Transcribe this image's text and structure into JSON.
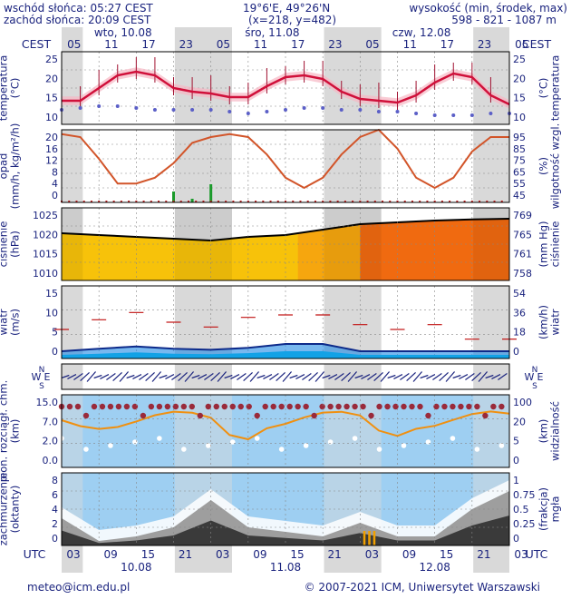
{
  "header": {
    "sunrise": "wschód słońca: 05:27 CEST",
    "sunset": "zachód słońca: 20:09 CEST",
    "coords": "19°6'E, 49°26'N",
    "grid": "(x=218, y=482)",
    "elev_label": "wysokość (min, środek, max)",
    "elev_values": "598 - 821 - 1087 m"
  },
  "top_axis": {
    "tz_left": "CEST",
    "tz_right": "CEST",
    "hours": [
      "05",
      "11",
      "17",
      "23",
      "05",
      "11",
      "17",
      "23",
      "05",
      "11",
      "17",
      "23",
      "05"
    ],
    "days": [
      "wto, 10.08",
      "śro, 11.08",
      "czw, 12.08"
    ]
  },
  "bottom_axis": {
    "tz_left": "UTC",
    "tz_right": "UTC",
    "hours": [
      "03",
      "09",
      "15",
      "21",
      "03",
      "09",
      "15",
      "21",
      "03",
      "09",
      "15",
      "21",
      "03"
    ],
    "days": [
      "10.08",
      "11.08",
      "12.08"
    ]
  },
  "panels": {
    "temperature": {
      "ylabel_left": "temperatura\n(°C)",
      "ylabel_right": "(°C)\ntemperatura",
      "ticks": [
        "25",
        "20",
        "15",
        "10"
      ]
    },
    "precip": {
      "ylabel_left": "opad\n(mm/h, kg/m²/h)",
      "ylabel_right": "(%)\nwilgotność wzgl.",
      "ticks_left": [
        "20",
        "16",
        "12",
        "8",
        "4",
        "0"
      ],
      "ticks_right": [
        "95",
        "85",
        "75",
        "65",
        "55",
        "45"
      ]
    },
    "pressure": {
      "ylabel_left": "ciśnienie\n(hPa)",
      "ylabel_right": "(mm Hg)\nciśnienie",
      "ticks_left": [
        "1025",
        "1020",
        "1015",
        "1010"
      ],
      "ticks_right": [
        "769",
        "765",
        "761",
        "758"
      ]
    },
    "wind": {
      "ylabel_left": "wiatr\n(m/s)",
      "ylabel_right": "(km/h)\nwiatr",
      "ticks_left": [
        "15",
        "10",
        "5",
        "0"
      ],
      "ticks_right": [
        "54",
        "36",
        "18",
        "0"
      ]
    },
    "wind_dir": {
      "compass": "W E N S"
    },
    "visibility": {
      "ylabel_left": "pion. rozciągł. chm.\n(km)",
      "ylabel_right": "(km)\nwidzialność",
      "ticks_left": [
        "15.0",
        "7.0",
        "2.0",
        "0.0"
      ],
      "ticks_right": [
        "100",
        "20",
        "5",
        "0"
      ]
    },
    "cloud": {
      "ylabel_left": "zachmurzenie\n(oktanty)",
      "ylabel_right": "(frakcja)\nmgła",
      "ticks_left": [
        "8",
        "6",
        "4",
        "2",
        "0"
      ],
      "ticks_right": [
        "1",
        "0.75",
        "0.5",
        "0.25",
        "0"
      ]
    }
  },
  "footer": {
    "email": "meteo@icm.edu.pl",
    "copyright": "© 2007-2021 ICM, Uniwersytet Warszawski"
  },
  "colors": {
    "text": "#1a237e",
    "night": "#d9d9d9",
    "temp_line": "#d0103a",
    "dew_points": "#5b5fc7",
    "humidity": "#d2552a",
    "rain": "#1a9a2a",
    "pressure_low": "#f7c20a",
    "pressure_high": "#f06a10",
    "wind_avg": "#1565c0",
    "wind_fill": "#00c8e8",
    "gust": "#c01010",
    "sky": "#9ecff2",
    "vis_line": "#f09010",
    "cloud_dark": "#3a3a3a"
  },
  "chart_data": [
    {
      "type": "line",
      "title": "temperatura",
      "x_hours_utc": [
        0,
        3,
        6,
        9,
        12,
        15,
        18,
        21,
        24,
        27,
        30,
        33,
        36,
        39,
        42,
        45,
        48,
        51,
        54,
        57,
        60,
        63,
        66,
        69,
        72
      ],
      "series": [
        {
          "name": "temperatura",
          "values": [
            14.5,
            14.5,
            18,
            21.5,
            22.5,
            21.5,
            18,
            17,
            16.5,
            15.5,
            15.5,
            18.5,
            21,
            21.5,
            20.5,
            17,
            15,
            14.5,
            14,
            16,
            19.5,
            22,
            21,
            16,
            13.5
          ]
        },
        {
          "values": [
            12,
            12.5,
            13,
            13,
            12.5,
            12,
            12,
            12,
            12,
            11.5,
            11,
            11.5,
            12,
            12.5,
            12.5,
            12,
            12,
            11.5,
            11.5,
            11,
            10.5,
            10.5,
            10.5,
            11,
            11
          ]
        }
      ],
      "ylim": [
        8,
        28
      ]
    },
    {
      "type": "line",
      "title": "opad / wilgotność",
      "x_hours_utc": [
        0,
        3,
        6,
        9,
        12,
        15,
        18,
        21,
        24,
        27,
        30,
        33,
        36,
        39,
        42,
        45,
        48,
        51,
        54,
        57,
        60,
        63,
        66,
        69,
        72
      ],
      "series": [
        {
          "name": "wilgotność",
          "values": [
            92,
            90,
            75,
            58,
            58,
            62,
            72,
            86,
            90,
            92,
            90,
            78,
            62,
            55,
            62,
            78,
            90,
            95,
            82,
            62,
            55,
            62,
            80,
            90,
            90
          ]
        },
        {
          "name": "opad",
          "values": [
            0,
            0,
            0,
            0,
            0,
            0,
            3,
            1,
            5,
            0,
            0,
            0,
            0,
            0,
            0,
            0,
            0,
            0,
            0,
            0,
            0,
            0,
            0,
            0,
            0
          ]
        }
      ],
      "ylim_left": [
        0,
        20
      ],
      "ylim_right": [
        45,
        95
      ]
    },
    {
      "type": "area",
      "title": "ciśnienie",
      "x_hours_utc": [
        0,
        6,
        12,
        18,
        24,
        30,
        36,
        42,
        48,
        54,
        60,
        66,
        72
      ],
      "values": [
        1020,
        1019.5,
        1019,
        1018.5,
        1018,
        1019,
        1019.5,
        1021,
        1022.5,
        1023,
        1023.5,
        1023.8,
        1024
      ],
      "ylim": [
        1007,
        1027
      ]
    },
    {
      "type": "line",
      "title": "wiatr",
      "x_hours_utc": [
        0,
        6,
        12,
        18,
        24,
        30,
        36,
        42,
        48,
        54,
        60,
        66,
        72
      ],
      "series": [
        {
          "name": "wiatr",
          "values": [
            1.5,
            2,
            2.5,
            2,
            1.8,
            2.2,
            3,
            3,
            1.5,
            1.5,
            1.5,
            1.5,
            1.5
          ]
        },
        {
          "name": "porywy",
          "values": [
            6,
            8,
            9.5,
            7.5,
            6.5,
            8.5,
            9,
            9,
            7,
            6,
            7,
            4,
            4
          ]
        }
      ],
      "ylim": [
        0,
        15
      ]
    },
    {
      "type": "area",
      "title": "zachmurzenie",
      "x_hours_utc": [
        0,
        6,
        12,
        18,
        24,
        30,
        36,
        42,
        48,
        54,
        60,
        66,
        72
      ],
      "series": [
        {
          "name": "zachmurzenie",
          "values": [
            3,
            0.5,
            1,
            2,
            5,
            2,
            1.5,
            1,
            2.5,
            1,
            1,
            4,
            6
          ]
        },
        {
          "name": "mgła",
          "values": [
            0,
            0,
            0,
            0,
            0,
            0,
            0,
            0,
            0.1,
            0,
            0,
            0,
            0
          ]
        }
      ],
      "ylim": [
        0,
        8
      ]
    }
  ]
}
